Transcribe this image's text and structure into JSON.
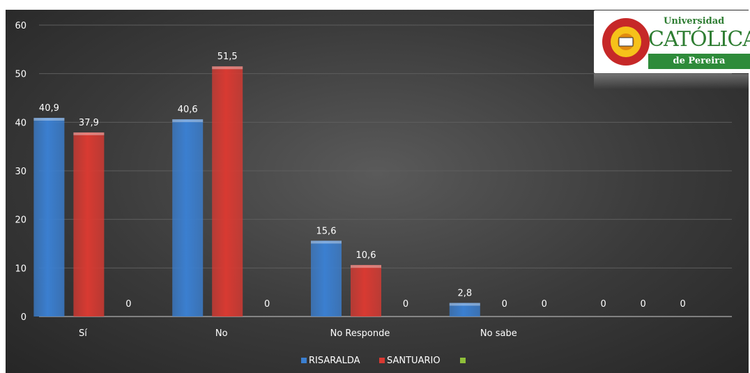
{
  "chart_data": {
    "type": "bar",
    "categories": [
      "Sí",
      "No",
      "No Responde",
      "No sabe",
      ""
    ],
    "series": [
      {
        "name": "RISARALDA",
        "values": [
          40.9,
          40.6,
          15.6,
          2.8,
          0
        ],
        "color": "#3b7fd0"
      },
      {
        "name": "SANTUARIO",
        "values": [
          37.9,
          51.5,
          10.6,
          0,
          0
        ],
        "color": "#d83a32"
      },
      {
        "name": "",
        "values": [
          0,
          0,
          0,
          0,
          0
        ],
        "color": "#8fbf3a"
      }
    ],
    "data_labels": [
      [
        "40,9",
        "37,9",
        "0"
      ],
      [
        "40,6",
        "51,5",
        "0"
      ],
      [
        "15,6",
        "10,6",
        "0"
      ],
      [
        "2,8",
        "0",
        "0"
      ],
      [
        "0",
        "0",
        "0"
      ]
    ],
    "yticks": [
      "0",
      "10",
      "20",
      "30",
      "40",
      "50",
      "60"
    ],
    "ylim": [
      0,
      60
    ],
    "grid": true,
    "legend_position": "bottom",
    "background": "#3c3c3c"
  },
  "logo": {
    "line1": "Universidad",
    "line2": "CATÓLICA",
    "line3": "de Pereira"
  }
}
